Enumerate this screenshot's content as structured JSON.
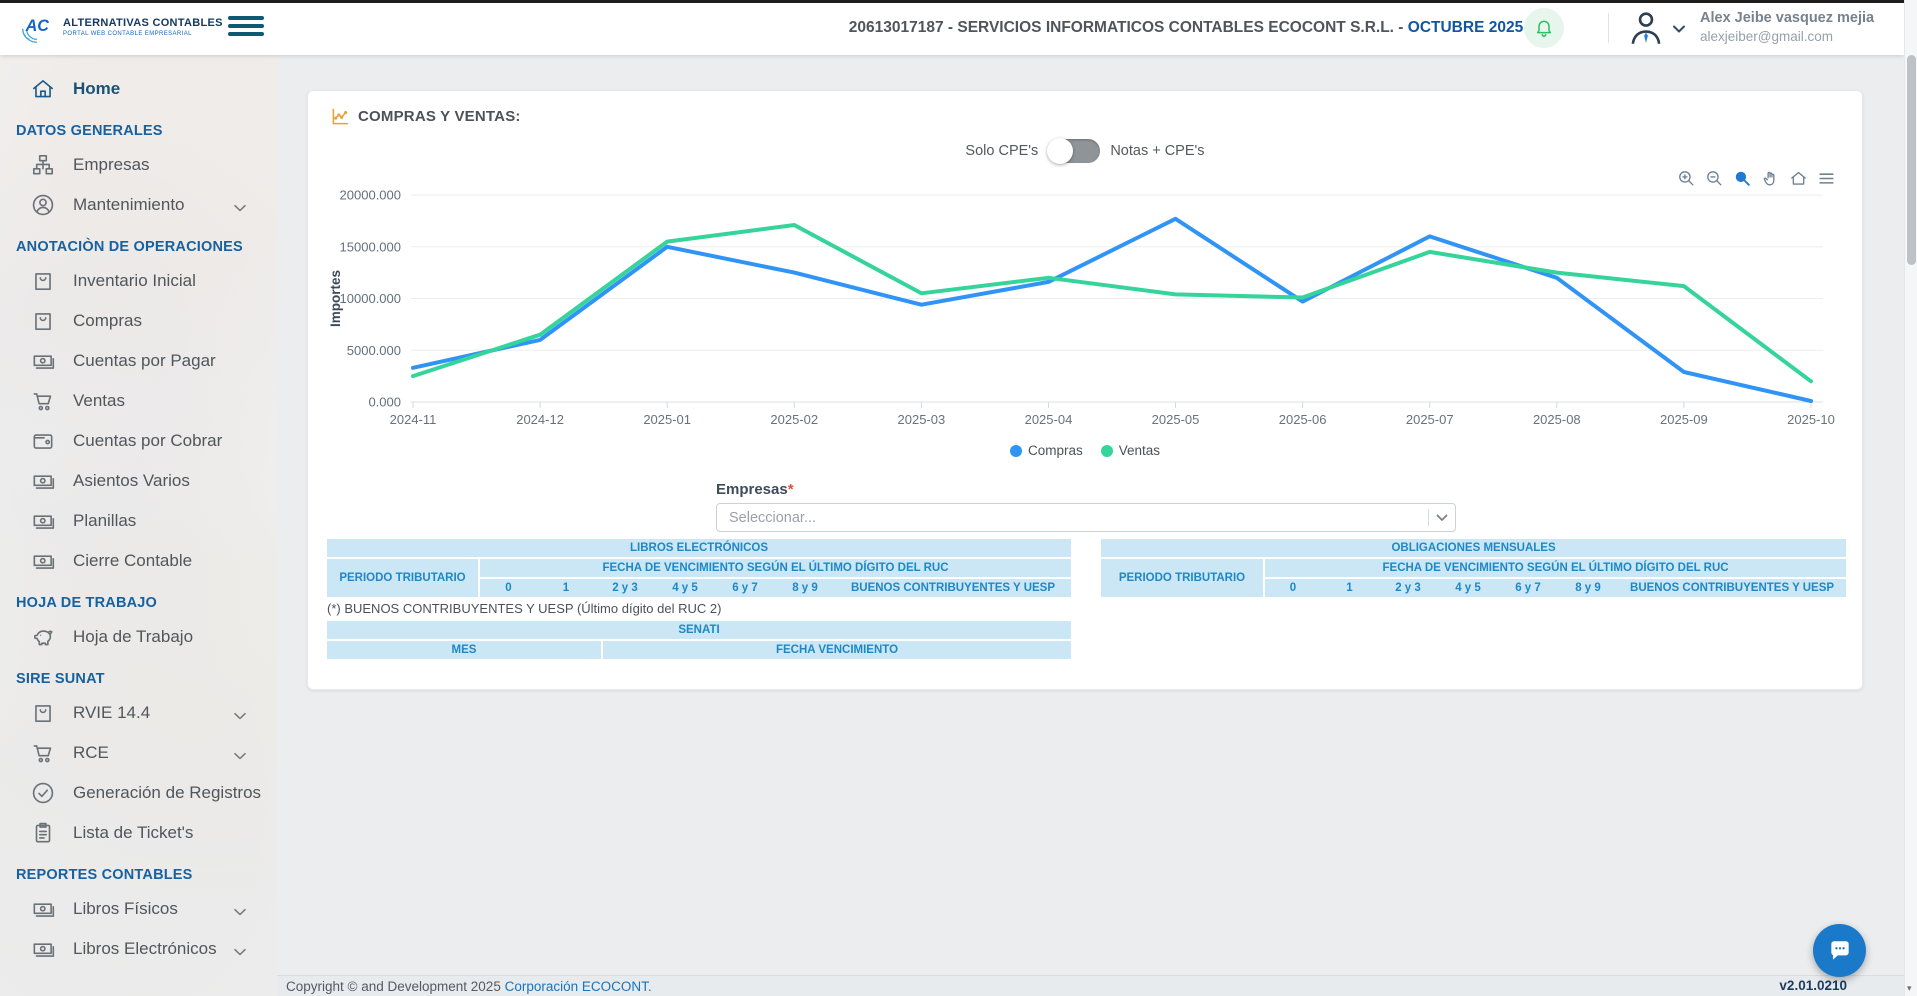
{
  "header": {
    "logo_title": "ALTERNATIVAS CONTABLES",
    "logo_subtitle": "PORTAL WEB CONTABLE EMPRESARIAL",
    "company_title": "20613017187 - SERVICIOS INFORMATICOS CONTABLES ECOCONT S.R.L. -",
    "period": "OCTUBRE 2025",
    "user": {
      "name": "Alex Jeibe vasquez mejia",
      "email": "alexjeiber@gmail.com"
    }
  },
  "sidebar": {
    "sections": [
      {
        "header": null,
        "items": [
          {
            "label": "Home",
            "icon": "home",
            "active": true
          }
        ]
      },
      {
        "header": "DATOS GENERALES",
        "items": [
          {
            "label": "Empresas",
            "icon": "sitemap"
          },
          {
            "label": "Mantenimiento",
            "icon": "user-circle",
            "chevron": true
          }
        ]
      },
      {
        "header": "ANOTACIÒN DE OPERACIONES",
        "items": [
          {
            "label": "Inventario Inicial",
            "icon": "shopping-bag"
          },
          {
            "label": "Compras",
            "icon": "shopping-bag"
          },
          {
            "label": "Cuentas por Pagar",
            "icon": "banknote"
          },
          {
            "label": "Ventas",
            "icon": "cart"
          },
          {
            "label": "Cuentas por Cobrar",
            "icon": "wallet"
          },
          {
            "label": "Asientos Varios",
            "icon": "banknote"
          },
          {
            "label": "Planillas",
            "icon": "banknote"
          },
          {
            "label": "Cierre Contable",
            "icon": "banknote"
          }
        ]
      },
      {
        "header": "HOJA DE TRABAJO",
        "items": [
          {
            "label": "Hoja de Trabajo",
            "icon": "piggy-bank"
          }
        ]
      },
      {
        "header": "SIRE SUNAT",
        "items": [
          {
            "label": "RVIE 14.4",
            "icon": "shopping-bag",
            "chevron": true
          },
          {
            "label": "RCE",
            "icon": "cart",
            "chevron": true
          },
          {
            "label": "Generación de Registros",
            "icon": "check-circle"
          },
          {
            "label": "Lista de Ticket's",
            "icon": "clipboard"
          }
        ]
      },
      {
        "header": "REPORTES CONTABLES",
        "items": [
          {
            "label": "Libros Físicos",
            "icon": "banknote",
            "chevron": true
          },
          {
            "label": "Libros Electrónicos",
            "icon": "banknote",
            "chevron": true
          }
        ]
      }
    ]
  },
  "main": {
    "card_title": "COMPRAS Y VENTAS:",
    "toggle": {
      "left": "Solo CPE's",
      "right": "Notas + CPE's"
    },
    "toolbar": [
      "zoom-in",
      "zoom-out",
      "selection-zoom",
      "pan",
      "home",
      "menu"
    ],
    "chart_data": {
      "type": "line",
      "title": "COMPRAS Y VENTAS",
      "categories": [
        "2024-11",
        "2024-12",
        "2025-01",
        "2025-02",
        "2025-03",
        "2025-04",
        "2025-05",
        "2025-06",
        "2025-07",
        "2025-08",
        "2025-09",
        "2025-10"
      ],
      "series": [
        {
          "name": "Compras",
          "color": "#2f94f5",
          "values": [
            3300,
            6000,
            15000,
            12500,
            9400,
            11600,
            17700,
            9700,
            16000,
            12000,
            2900,
            100
          ]
        },
        {
          "name": "Ventas",
          "color": "#35d49b",
          "values": [
            2500,
            6500,
            15500,
            17100,
            10500,
            12000,
            10400,
            10100,
            14500,
            12500,
            11200,
            2000
          ]
        }
      ],
      "xlabel": "",
      "ylabel": "Importes",
      "ylim": [
        0,
        20000
      ],
      "ytick_step": 5000,
      "ytick_labels": [
        "0.000",
        "5000.000",
        "10000.000",
        "15000.000",
        "20000.000"
      ],
      "grid": "horizontal",
      "legend_position": "bottom"
    },
    "empresas": {
      "label": "Empresas",
      "required_mark": "*",
      "placeholder": "Seleccionar..."
    },
    "tables": {
      "libros": {
        "title": "LIBROS ELECTRÓNICOS",
        "col1": "PERIODO TRIBUTARIO",
        "group": "FECHA DE VENCIMIENTO SEGÚN EL ÚLTIMO DÍGITO DEL RUC",
        "cols": [
          "0",
          "1",
          "2 y 3",
          "4 y 5",
          "6 y 7",
          "8 y 9",
          "BUENOS CONTRIBUYENTES Y UESP"
        ]
      },
      "obligaciones": {
        "title": "OBLIGACIONES MENSUALES",
        "col1": "PERIODO TRIBUTARIO",
        "group": "FECHA DE VENCIMIENTO SEGÚN EL ÚLTIMO DÍGITO DEL RUC",
        "cols": [
          "0",
          "1",
          "2 y 3",
          "4 y 5",
          "6 y 7",
          "8 y 9",
          "BUENOS CONTRIBUYENTES Y UESP"
        ]
      },
      "nota": "(*) BUENOS CONTRIBUYENTES Y UESP (Último dígito del RUC 2)",
      "senati": {
        "title": "SENATI",
        "col1": "MES",
        "col2": "FECHA VENCIMIENTO"
      }
    }
  },
  "footer": {
    "copyright": "Copyright © and Development 2025",
    "link": "Corporación ECOCONT.",
    "version": "v2.01.0210"
  },
  "colors": {
    "accent_blue": "#1255a0",
    "chart_blue": "#2f94f5",
    "chart_green": "#35d49b",
    "table_header_bg": "#cbe7f6",
    "table_header_text": "#1e88c7",
    "bell_green": "#2dbe60",
    "chat_blue": "#1b79ca"
  }
}
